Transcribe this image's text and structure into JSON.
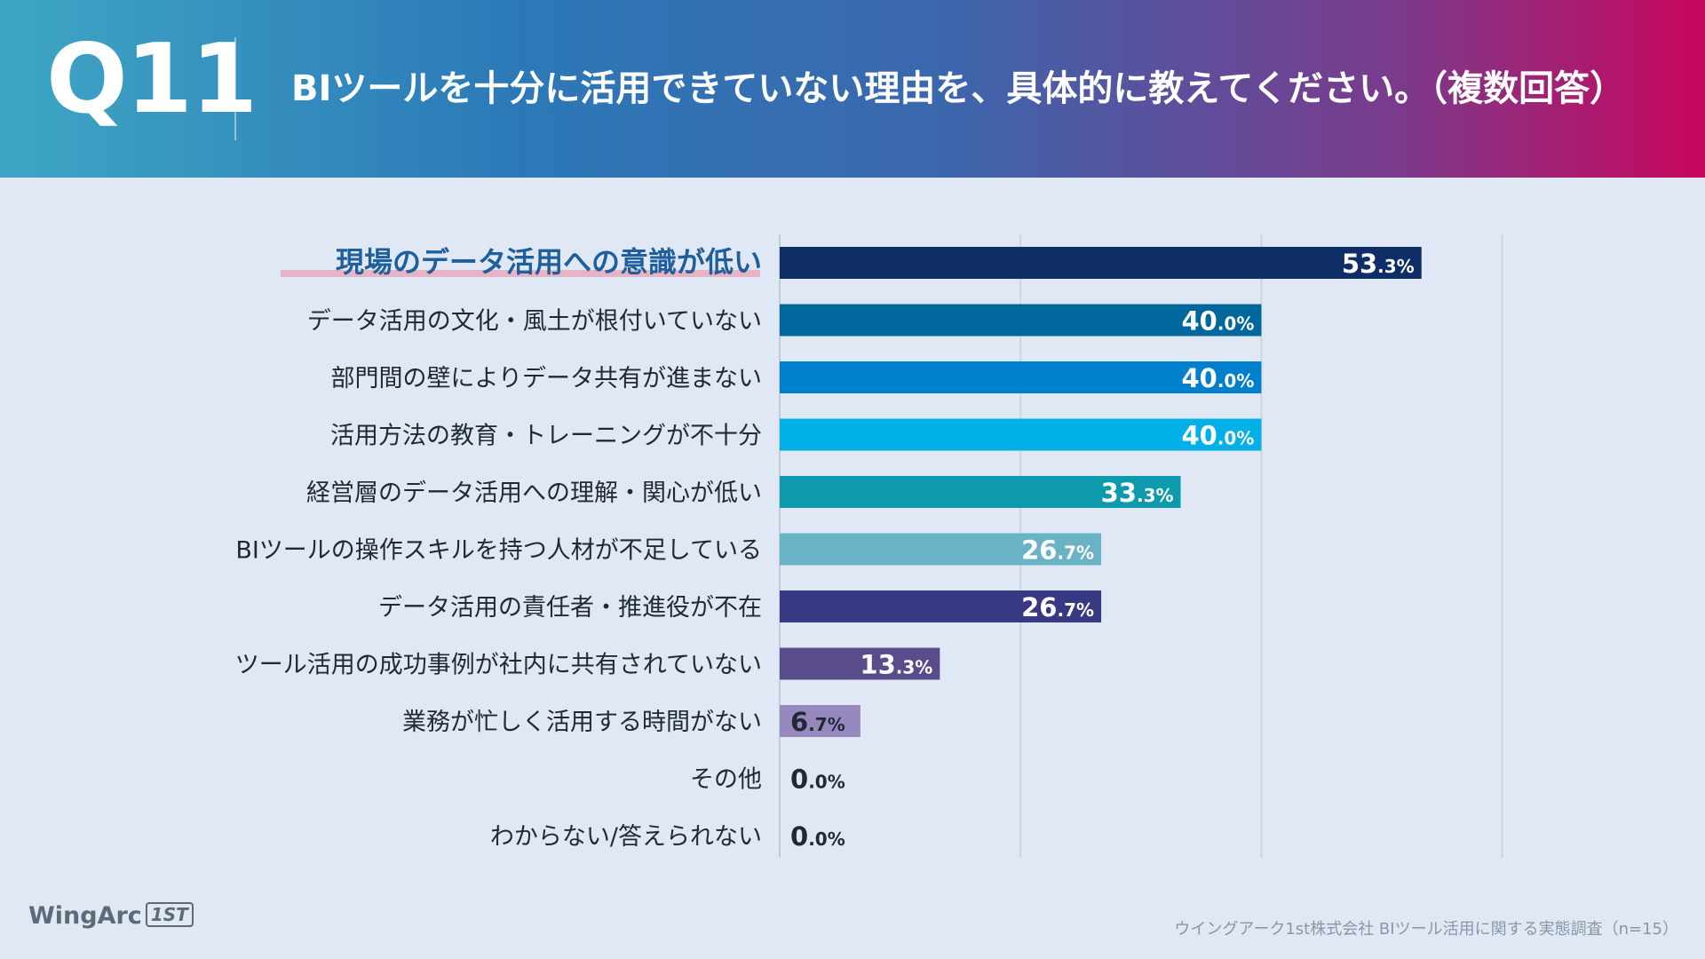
{
  "header": {
    "question_number": "Q11",
    "question": "BIツールを十分に活用できていない理由を、具体的に教えてください。（複数回答）"
  },
  "chart_data": {
    "type": "bar",
    "orientation": "horizontal",
    "title": "BIツールを十分に活用できていない理由を、具体的に教えてください。（複数回答）",
    "unit": "%",
    "xlim": [
      0,
      100
    ],
    "grid": true,
    "categories": [
      "現場のデータ活用への意識が低い",
      "データ活用の文化・風土が根付いていない",
      "部門間の壁によりデータ共有が進まない",
      "活用方法の教育・トレーニングが不十分",
      "経営層のデータ活用への理解・関心が低い",
      "BIツールの操作スキルを持つ人材が不足している",
      "データ活用の責任者・推進役が不在",
      "ツール活用の成功事例が社内に共有されていない",
      "業務が忙しく活用する時間がない",
      "その他",
      "わからない/答えられない"
    ],
    "values": [
      53.3,
      40.0,
      40.0,
      40.0,
      33.3,
      26.7,
      26.7,
      13.3,
      6.7,
      0.0,
      0.0
    ],
    "colors": [
      "#0f2d66",
      "#00679d",
      "#0080cc",
      "#00b0e6",
      "#0d9aad",
      "#6ab2c6",
      "#373a83",
      "#5a4c8a",
      "#9789bd",
      "#9789bd",
      "#9789bd"
    ],
    "highlight_index": 0,
    "highlight_color": "#1f5f9c",
    "highlight_underline": "#e6b4c4"
  },
  "footer": {
    "brand": "WingArc",
    "brand_badge": "1ST",
    "source": "ウイングアーク1st株式会社  BIツール活用に関する実態調査（n=15）"
  }
}
